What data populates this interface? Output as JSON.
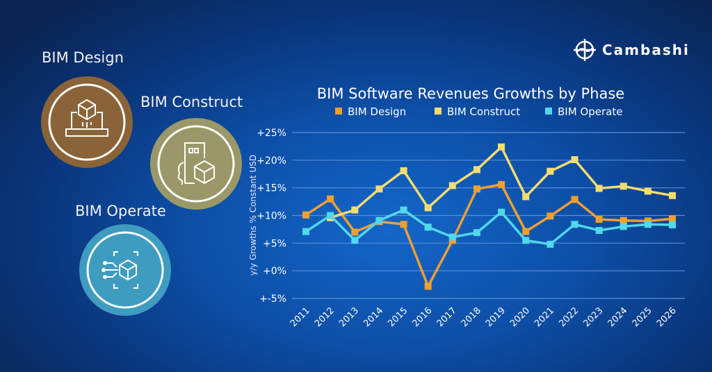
{
  "brand": {
    "name": "Cambashi"
  },
  "phases": [
    {
      "label": "BIM Design",
      "icon": "laptop-cube-icon",
      "color": "#8a6438"
    },
    {
      "label": "BIM Construct",
      "icon": "building-cube-icon",
      "color": "#9a9868"
    },
    {
      "label": "BIM Operate",
      "icon": "network-cube-icon",
      "color": "#3e9cc0"
    }
  ],
  "chart_data": {
    "type": "line",
    "title": "BIM Software Revenues Growths by Phase",
    "ylabel": "y/y Growths % Constant USD",
    "xlabel": "",
    "x": [
      "2011",
      "2012",
      "2013",
      "2014",
      "2015",
      "2016",
      "2017",
      "2018",
      "2019",
      "2020",
      "2021",
      "2022",
      "2023",
      "2024",
      "2025",
      "2026"
    ],
    "ylim": [
      -5,
      25
    ],
    "yticks": [
      "+-5%",
      "+0%",
      "+5%",
      "+10%",
      "+15%",
      "+20%",
      "+25%"
    ],
    "grid": true,
    "legend": "top",
    "series": [
      {
        "name": "BIM Design",
        "color": "#f0a030",
        "values": [
          10.1,
          13.0,
          7.0,
          8.9,
          8.4,
          -2.8,
          5.5,
          14.8,
          15.6,
          7.1,
          9.9,
          12.9,
          9.3,
          9.1,
          9.0,
          9.4
        ]
      },
      {
        "name": "BIM Construct",
        "color": "#f8dc70",
        "values": [
          null,
          9.6,
          11.0,
          14.8,
          18.1,
          11.4,
          15.4,
          18.3,
          22.4,
          13.4,
          18.0,
          20.1,
          14.9,
          15.3,
          14.4,
          13.6
        ]
      },
      {
        "name": "BIM Operate",
        "color": "#50d8ec",
        "values": [
          7.1,
          10.0,
          5.5,
          9.1,
          11.0,
          7.9,
          6.1,
          6.9,
          10.6,
          5.5,
          4.8,
          8.4,
          7.3,
          8.0,
          8.4,
          8.3
        ]
      }
    ]
  }
}
